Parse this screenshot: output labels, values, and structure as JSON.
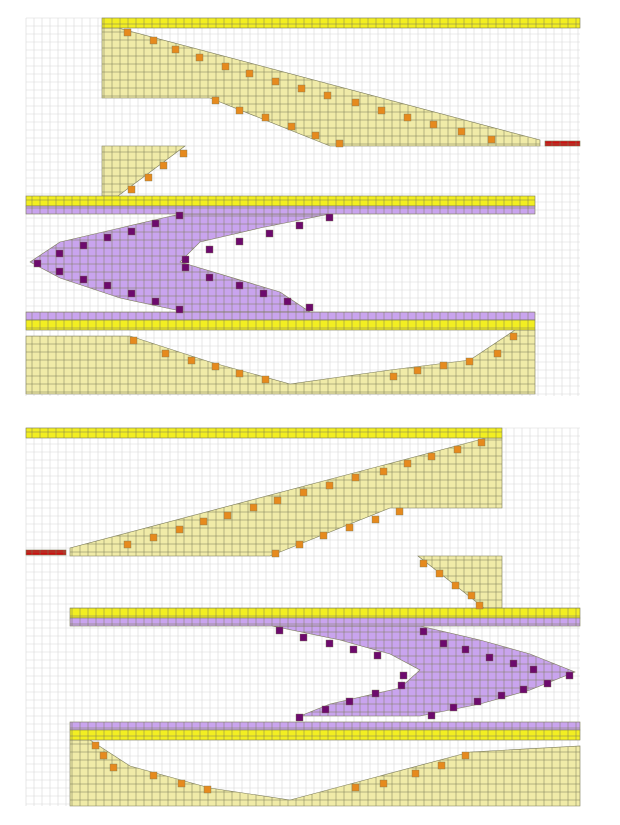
{
  "palette": {
    "background": "#ffffff",
    "grid_line": "#d7d7d7",
    "cell_border": "#7a7a58",
    "khaki_fill": "#f0eba8",
    "yellow_bar": "#f2ee22",
    "orange_block": "#e68a1e",
    "lavender_fill": "#c9a4ee",
    "purple_block": "#6d0a6d",
    "red_bar": "#cc1111"
  },
  "panels": [
    {
      "name": "upper-panel",
      "description_visible": false,
      "regions": [
        {
          "kind": "bar",
          "color": "yellow_bar",
          "x0": 102,
          "y0": 18,
          "x1": 580,
          "y1": 28
        },
        {
          "kind": "bar",
          "color": "yellow_bar",
          "x0": 26,
          "y0": 196,
          "x1": 535,
          "y1": 206
        },
        {
          "kind": "bar",
          "color": "lavender_fill",
          "x0": 26,
          "y0": 206,
          "x1": 535,
          "y1": 214
        },
        {
          "kind": "bar",
          "color": "lavender_fill",
          "x0": 26,
          "y0": 312,
          "x1": 535,
          "y1": 320
        },
        {
          "kind": "bar",
          "color": "yellow_bar",
          "x0": 26,
          "y0": 320,
          "x1": 535,
          "y1": 330
        },
        {
          "kind": "bar",
          "color": "red_bar",
          "x0": 545,
          "y0": 141,
          "x1": 580,
          "y1": 146
        }
      ],
      "polygons": [
        {
          "color": "khaki_fill",
          "points": [
            [
              102,
              28
            ],
            [
              118,
              28
            ],
            [
              540,
              140
            ],
            [
              540,
              146
            ],
            [
              330,
              146
            ],
            [
              210,
              98
            ],
            [
              102,
              98
            ]
          ]
        },
        {
          "color": "khaki_fill",
          "points": [
            [
              102,
              146
            ],
            [
              185,
              146
            ],
            [
              118,
              196
            ],
            [
              102,
              196
            ]
          ]
        },
        {
          "color": "lavender_fill",
          "points": [
            [
              180,
              214
            ],
            [
              330,
              214
            ],
            [
              260,
              228
            ],
            [
              200,
              242
            ],
            [
              180,
              262
            ],
            [
              280,
              292
            ],
            [
              310,
              312
            ],
            [
              185,
              312
            ],
            [
              120,
              298
            ],
            [
              60,
              278
            ],
            [
              30,
              262
            ],
            [
              60,
              242
            ],
            [
              120,
              228
            ]
          ]
        },
        {
          "color": "khaki_fill",
          "points": [
            [
              26,
              336
            ],
            [
              130,
              336
            ],
            [
              210,
              362
            ],
            [
              290,
              384
            ],
            [
              390,
              370
            ],
            [
              470,
              360
            ],
            [
              515,
              330
            ],
            [
              535,
              330
            ],
            [
              535,
              394
            ],
            [
              26,
              394
            ]
          ]
        }
      ],
      "blocks": [
        {
          "color": "orange_block",
          "cells": [
            [
              124,
              29
            ],
            [
              150,
              37
            ],
            [
              172,
              46
            ],
            [
              196,
              54
            ],
            [
              222,
              63
            ],
            [
              246,
              70
            ],
            [
              272,
              78
            ],
            [
              298,
              85
            ],
            [
              324,
              92
            ],
            [
              352,
              99
            ],
            [
              378,
              107
            ],
            [
              404,
              114
            ],
            [
              430,
              121
            ],
            [
              458,
              128
            ],
            [
              488,
              136
            ],
            [
              180,
              150
            ],
            [
              160,
              162
            ],
            [
              145,
              174
            ],
            [
              128,
              186
            ],
            [
              212,
              97
            ],
            [
              236,
              107
            ],
            [
              262,
              114
            ],
            [
              288,
              123
            ],
            [
              312,
              132
            ],
            [
              336,
              140
            ],
            [
              130,
              337
            ],
            [
              162,
              350
            ],
            [
              188,
              357
            ],
            [
              212,
              363
            ],
            [
              236,
              370
            ],
            [
              262,
              376
            ],
            [
              390,
              373
            ],
            [
              414,
              367
            ],
            [
              440,
              362
            ],
            [
              466,
              358
            ],
            [
              494,
              350
            ],
            [
              510,
              333
            ]
          ]
        },
        {
          "color": "purple_block",
          "cells": [
            [
              176,
              212
            ],
            [
              152,
              220
            ],
            [
              128,
              228
            ],
            [
              104,
              234
            ],
            [
              80,
              242
            ],
            [
              56,
              250
            ],
            [
              34,
              260
            ],
            [
              56,
              268
            ],
            [
              80,
              276
            ],
            [
              104,
              282
            ],
            [
              128,
              290
            ],
            [
              152,
              298
            ],
            [
              176,
              306
            ],
            [
              326,
              214
            ],
            [
              296,
              222
            ],
            [
              266,
              230
            ],
            [
              236,
              238
            ],
            [
              206,
              246
            ],
            [
              182,
              256
            ],
            [
              182,
              264
            ],
            [
              206,
              274
            ],
            [
              236,
              282
            ],
            [
              260,
              290
            ],
            [
              284,
              298
            ],
            [
              306,
              304
            ]
          ]
        }
      ]
    },
    {
      "name": "lower-panel",
      "description_visible": false,
      "regions": [
        {
          "kind": "bar",
          "color": "yellow_bar",
          "x0": 26,
          "y0": 428,
          "x1": 502,
          "y1": 438
        },
        {
          "kind": "bar",
          "color": "red_bar",
          "x0": 26,
          "y0": 550,
          "x1": 66,
          "y1": 555
        },
        {
          "kind": "bar",
          "color": "yellow_bar",
          "x0": 70,
          "y0": 608,
          "x1": 580,
          "y1": 618
        },
        {
          "kind": "bar",
          "color": "lavender_fill",
          "x0": 70,
          "y0": 618,
          "x1": 580,
          "y1": 626
        },
        {
          "kind": "bar",
          "color": "lavender_fill",
          "x0": 70,
          "y0": 722,
          "x1": 580,
          "y1": 730
        },
        {
          "kind": "bar",
          "color": "yellow_bar",
          "x0": 70,
          "y0": 730,
          "x1": 580,
          "y1": 740
        }
      ],
      "polygons": [
        {
          "color": "khaki_fill",
          "points": [
            [
              486,
              438
            ],
            [
              502,
              438
            ],
            [
              502,
              508
            ],
            [
              390,
              508
            ],
            [
              270,
              556
            ],
            [
              70,
              556
            ],
            [
              70,
              548
            ]
          ]
        },
        {
          "color": "khaki_fill",
          "points": [
            [
              418,
              556
            ],
            [
              502,
              556
            ],
            [
              502,
              608
            ],
            [
              484,
              608
            ]
          ]
        },
        {
          "color": "lavender_fill",
          "points": [
            [
              272,
              626
            ],
            [
              420,
              626
            ],
            [
              480,
              640
            ],
            [
              530,
              654
            ],
            [
              575,
              672
            ],
            [
              530,
              690
            ],
            [
              480,
              704
            ],
            [
              420,
              716
            ],
            [
              300,
              716
            ],
            [
              330,
              704
            ],
            [
              400,
              688
            ],
            [
              420,
              670
            ],
            [
              390,
              654
            ],
            [
              340,
              640
            ]
          ]
        },
        {
          "color": "khaki_fill",
          "points": [
            [
              70,
              740
            ],
            [
              90,
              740
            ],
            [
              130,
              766
            ],
            [
              210,
              788
            ],
            [
              290,
              800
            ],
            [
              380,
              776
            ],
            [
              470,
              752
            ],
            [
              580,
              746
            ],
            [
              580,
              806
            ],
            [
              70,
              806
            ]
          ]
        }
      ],
      "blocks": [
        {
          "color": "orange_block",
          "cells": [
            [
              478,
              439
            ],
            [
              454,
              446
            ],
            [
              428,
              453
            ],
            [
              404,
              460
            ],
            [
              380,
              468
            ],
            [
              352,
              474
            ],
            [
              326,
              482
            ],
            [
              300,
              489
            ],
            [
              274,
              497
            ],
            [
              250,
              504
            ],
            [
              224,
              512
            ],
            [
              200,
              518
            ],
            [
              176,
              526
            ],
            [
              150,
              534
            ],
            [
              124,
              541
            ],
            [
              272,
              550
            ],
            [
              296,
              541
            ],
            [
              320,
              532
            ],
            [
              346,
              524
            ],
            [
              372,
              516
            ],
            [
              396,
              508
            ],
            [
              420,
              560
            ],
            [
              436,
              570
            ],
            [
              452,
              582
            ],
            [
              468,
              592
            ],
            [
              476,
              602
            ],
            [
              92,
              742
            ],
            [
              100,
              752
            ],
            [
              110,
              764
            ],
            [
              150,
              772
            ],
            [
              178,
              780
            ],
            [
              204,
              786
            ],
            [
              380,
              780
            ],
            [
              352,
              784
            ],
            [
              412,
              770
            ],
            [
              438,
              762
            ],
            [
              462,
              752
            ]
          ]
        },
        {
          "color": "purple_block",
          "cells": [
            [
              276,
              627
            ],
            [
              300,
              634
            ],
            [
              326,
              640
            ],
            [
              350,
              646
            ],
            [
              374,
              652
            ],
            [
              420,
              628
            ],
            [
              440,
              640
            ],
            [
              462,
              646
            ],
            [
              486,
              654
            ],
            [
              510,
              660
            ],
            [
              530,
              666
            ],
            [
              566,
              672
            ],
            [
              544,
              680
            ],
            [
              520,
              686
            ],
            [
              498,
              692
            ],
            [
              474,
              698
            ],
            [
              450,
              704
            ],
            [
              428,
              712
            ],
            [
              398,
              682
            ],
            [
              372,
              690
            ],
            [
              346,
              698
            ],
            [
              322,
              706
            ],
            [
              296,
              714
            ],
            [
              400,
              672
            ]
          ]
        }
      ]
    }
  ]
}
